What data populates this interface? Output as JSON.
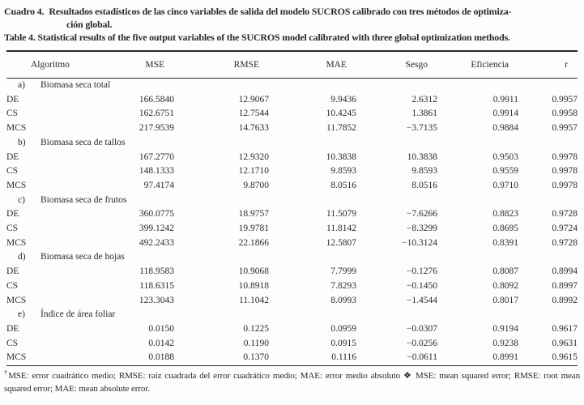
{
  "caption": {
    "es_label": "Cuadro 4.",
    "es_line1": "Resultados estadísticos de las cinco variables de salida del modelo SUCROS calibrado con tres métodos de optimiza-",
    "es_line2": "ción global.",
    "en": "Table 4. Statistical results of the five output variables of the SUCROS model calibrated with three global optimization methods."
  },
  "table": {
    "columns": [
      "Algoritmo",
      "MSE",
      "RMSE",
      "MAE",
      "Sesgo",
      "Eficiencia",
      "r"
    ],
    "sections": [
      {
        "key": "a)",
        "label": "Biomasa seca total",
        "rows": [
          {
            "alg": "DE",
            "values": [
              "166.5840",
              "12.9067",
              "9.9436",
              "2.6312",
              "0.9911",
              "0.9957"
            ]
          },
          {
            "alg": "CS",
            "values": [
              "162.6751",
              "12.7544",
              "10.4245",
              "1.3861",
              "0.9914",
              "0.9958"
            ]
          },
          {
            "alg": "MCS",
            "values": [
              "217.9539",
              "14.7633",
              "11.7852",
              "−3.7135",
              "0.9884",
              "0.9957"
            ]
          }
        ]
      },
      {
        "key": "b)",
        "label": "Biomasa seca de tallos",
        "rows": [
          {
            "alg": "DE",
            "values": [
              "167.2770",
              "12.9320",
              "10.3838",
              "10.3838",
              "0.9503",
              "0.9978"
            ]
          },
          {
            "alg": "CS",
            "values": [
              "148.1333",
              "12.1710",
              "9.8593",
              "9.8593",
              "0.9559",
              "0.9978"
            ]
          },
          {
            "alg": "MCS",
            "values": [
              "97.4174",
              "9.8700",
              "8.0516",
              "8.0516",
              "0.9710",
              "0.9978"
            ]
          }
        ]
      },
      {
        "key": "c)",
        "label": "Biomasa seca de frutos",
        "rows": [
          {
            "alg": "DE",
            "values": [
              "360.0775",
              "18.9757",
              "11.5079",
              "−7.6266",
              "0.8823",
              "0.9728"
            ]
          },
          {
            "alg": "CS",
            "values": [
              "399.1242",
              "19.9781",
              "11.8142",
              "−8.3299",
              "0.8695",
              "0.9724"
            ]
          },
          {
            "alg": "MCS",
            "values": [
              "492.2433",
              "22.1866",
              "12.5807",
              "−10.3124",
              "0.8391",
              "0.9728"
            ]
          }
        ]
      },
      {
        "key": "d)",
        "label": "Biomasa seca de hojas",
        "rows": [
          {
            "alg": "DE",
            "values": [
              "118.9583",
              "10.9068",
              "7.7999",
              "−0.1276",
              "0.8087",
              "0.8994"
            ]
          },
          {
            "alg": "CS",
            "values": [
              "118.6315",
              "10.8918",
              "7.8293",
              "−0.1450",
              "0.8092",
              "0.8997"
            ]
          },
          {
            "alg": "MCS",
            "values": [
              "123.3043",
              "11.1042",
              "8.0993",
              "−1.4544",
              "0.8017",
              "0.8992"
            ]
          }
        ]
      },
      {
        "key": "e)",
        "label": "Índice de área foliar",
        "rows": [
          {
            "alg": "DE",
            "values": [
              "0.0150",
              "0.1225",
              "0.0959",
              "−0.0307",
              "0.9194",
              "0.9617"
            ]
          },
          {
            "alg": "CS",
            "values": [
              "0.0142",
              "0.1190",
              "0.0915",
              "−0.0256",
              "0.9238",
              "0.9631"
            ]
          },
          {
            "alg": "MCS",
            "values": [
              "0.0188",
              "0.1370",
              "0.1116",
              "−0.0611",
              "0.8991",
              "0.9615"
            ]
          }
        ]
      }
    ]
  },
  "footnote": {
    "marker": "†",
    "text": "MSE: error cuadrático medio; RMSE: raíz cuadrada del error cuadrático medio; MAE: error medio absoluto ❖ MSE: mean squared error; RMSE: root mean squared error; MAE: mean absolute error."
  }
}
